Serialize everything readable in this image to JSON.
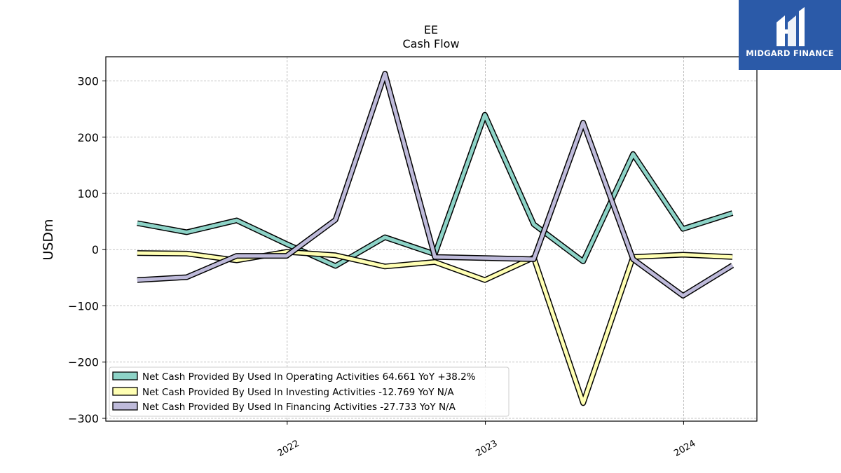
{
  "chart_data": {
    "type": "line",
    "title": "EE",
    "subtitle": "Cash Flow",
    "ylabel": "USDm",
    "xlabel": "",
    "ylim": [
      -305,
      343
    ],
    "xlim": [
      "2021-02-01",
      "2024-05-15"
    ],
    "yticks": [
      300,
      200,
      100,
      0,
      -100,
      -200,
      -300
    ],
    "ytick_labels": [
      "300",
      "200",
      "100",
      "0",
      "−100",
      "−200",
      "−300"
    ],
    "xticks": [
      {
        "date": "2022-01-01",
        "label": "2022"
      },
      {
        "date": "2023-01-01",
        "label": "2023"
      },
      {
        "date": "2024-01-01",
        "label": "2024"
      }
    ],
    "grid": true,
    "legend_position": "lower-left",
    "x": [
      "2021-03-31",
      "2021-06-30",
      "2021-09-30",
      "2021-12-31",
      "2022-03-31",
      "2022-06-30",
      "2022-09-30",
      "2022-12-31",
      "2023-03-31",
      "2023-06-30",
      "2023-09-30",
      "2023-12-31",
      "2024-03-31"
    ],
    "series": [
      {
        "name": "Net Cash Provided By Used In Operating Activities",
        "legend_label": "Net Cash Provided By Used In Operating Activities  64.661 YoY +38.2%",
        "color": "#8dd3c7",
        "values": [
          47,
          31,
          52,
          10,
          -29,
          22,
          -8,
          240,
          45,
          -21,
          170,
          37,
          65
        ]
      },
      {
        "name": "Net Cash Provided By Used In Investing Activities",
        "legend_label": "Net Cash Provided By Used In Investing Activities  -12.769 YoY N/A",
        "color": "#ffffb3",
        "values": [
          -6,
          -7,
          -19,
          -4,
          -10,
          -30,
          -22,
          -54,
          -14,
          -273,
          -13,
          -9,
          -13
        ]
      },
      {
        "name": "Net Cash Provided By Used In Financing Activities",
        "legend_label": "Net Cash Provided By Used In Financing Activities  -27.733 YoY N/A",
        "color": "#bebada",
        "values": [
          -54,
          -49,
          -11,
          -11,
          53,
          313,
          -13,
          -15,
          -17,
          226,
          -17,
          -82,
          -28
        ]
      }
    ]
  },
  "logo": {
    "text": "MIDGARD FINANCE",
    "color": "#2b5aa8"
  }
}
